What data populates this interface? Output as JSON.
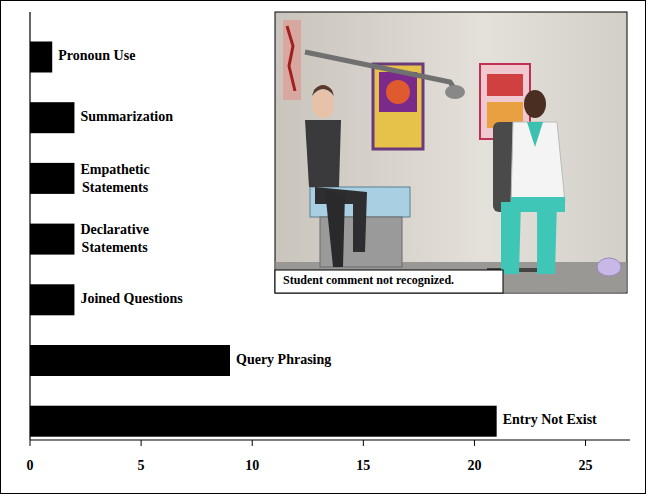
{
  "chart_data": {
    "type": "bar",
    "orientation": "horizontal",
    "categories": [
      "Pronoun Use",
      "Summarization",
      "Empathetic Statements",
      "Declarative Statements",
      "Joined Questions",
      "Query Phrasing",
      "Entry Not Exist"
    ],
    "values": [
      1,
      2,
      2,
      2,
      2,
      9,
      21
    ],
    "color": "#000000",
    "xlim": [
      0,
      27
    ],
    "xticks": [
      0,
      5,
      10,
      15,
      20,
      25
    ],
    "grid": false,
    "annotations": [
      "Student comment not recognized."
    ]
  }
}
